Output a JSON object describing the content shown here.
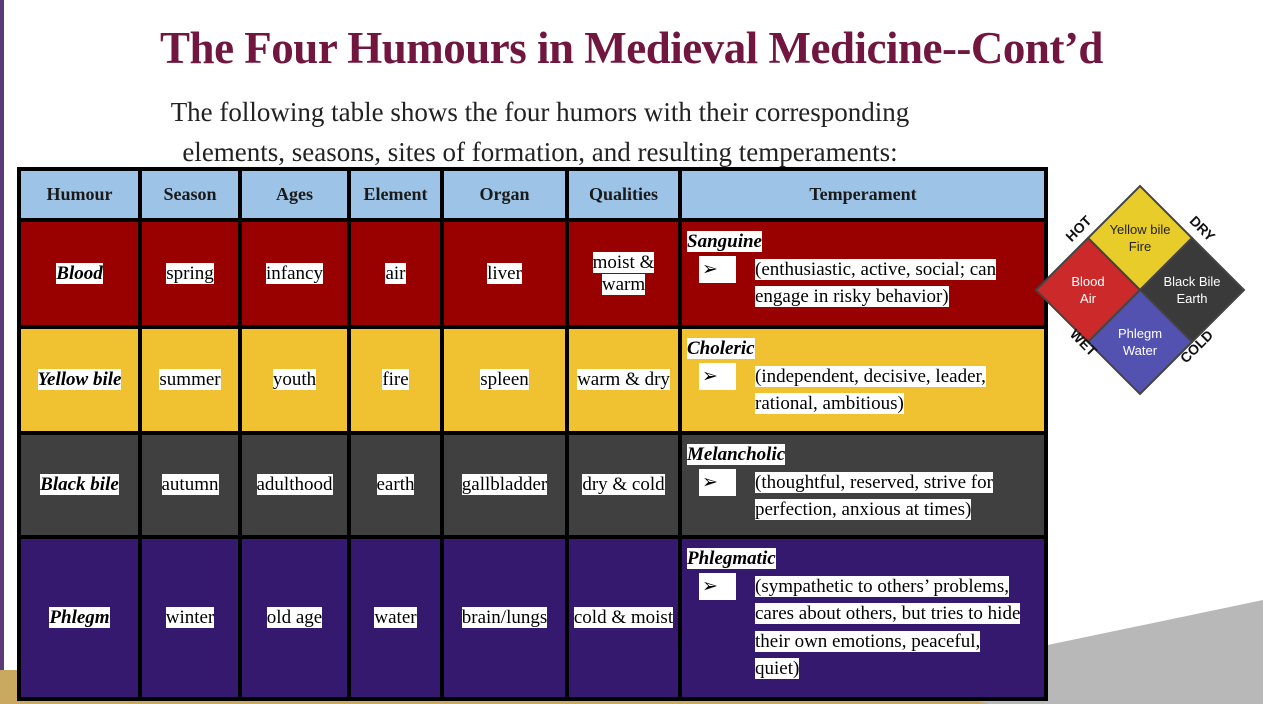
{
  "title": "The Four Humours in Medieval Medicine--Cont’d",
  "subtitle": [
    "The following table shows the four humors with their corresponding",
    "elements, seasons, sites of formation, and resulting temperaments:"
  ],
  "table": {
    "header": [
      "Humour",
      "Season",
      "Ages",
      "Element",
      "Organ",
      "Qualities",
      "Temperament"
    ],
    "rows": [
      {
        "cells": [
          "Blood",
          "spring",
          "infancy",
          "air",
          "liver",
          "moist & warm"
        ],
        "temperament": "Sanguine",
        "traits": "(enthusiastic, active, social; can engage in risky behavior)"
      },
      {
        "cells": [
          "Yellow bile",
          "summer",
          "youth",
          "fire",
          "spleen",
          "warm & dry"
        ],
        "temperament": "Choleric",
        "traits": "(independent, decisive, leader, rational, ambitious)"
      },
      {
        "cells": [
          "Black bile",
          "autumn",
          "adulthood",
          "earth",
          "gallbladder",
          "dry & cold"
        ],
        "temperament": "Melancholic",
        "traits": "(thoughtful, reserved, strive for perfection, anxious at times)"
      },
      {
        "cells": [
          "Phlegm",
          "winter",
          "old age",
          "water",
          "brain/lungs",
          "cold & moist"
        ],
        "temperament": "Phlegmatic",
        "traits": "(sympathetic to others’ problems, cares about others, but tries to hide their own emotions, peaceful, quiet)"
      }
    ]
  },
  "diagram": {
    "corners": [
      "HOT",
      "DRY",
      "WET",
      "COLD"
    ],
    "quadrants": [
      {
        "name": "Yellow bile",
        "element": "Fire"
      },
      {
        "name": "Blood",
        "element": "Air"
      },
      {
        "name": "Black Bile",
        "element": "Earth"
      },
      {
        "name": "Phlegm",
        "element": "Water"
      }
    ]
  }
}
